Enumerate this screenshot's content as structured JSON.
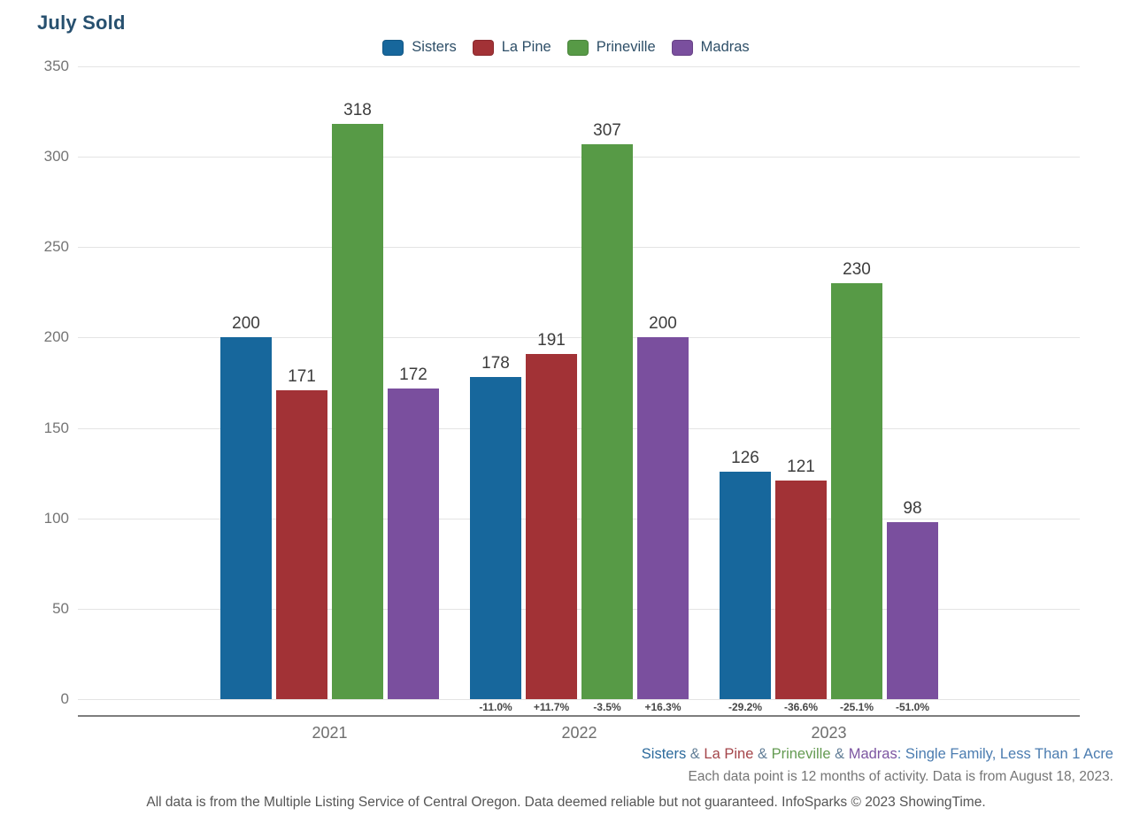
{
  "title": "July Sold",
  "chart_data": {
    "type": "bar",
    "categories": [
      "2021",
      "2022",
      "2023"
    ],
    "series": [
      {
        "name": "Sisters",
        "color": "#17679c",
        "values": [
          200,
          178,
          126
        ],
        "pct_change": [
          "",
          "-11.0%",
          "-29.2%"
        ]
      },
      {
        "name": "La Pine",
        "color": "#a23236",
        "values": [
          171,
          191,
          121
        ],
        "pct_change": [
          "",
          "+11.7%",
          "-36.6%"
        ]
      },
      {
        "name": "Prineville",
        "color": "#579a46",
        "values": [
          318,
          307,
          230
        ],
        "pct_change": [
          "",
          "-3.5%",
          "-25.1%"
        ]
      },
      {
        "name": "Madras",
        "color": "#7a4f9e",
        "values": [
          172,
          200,
          98
        ],
        "pct_change": [
          "",
          "+16.3%",
          "-51.0%"
        ]
      }
    ],
    "title": "July Sold",
    "xlabel": "",
    "ylabel": "",
    "ylim": [
      0,
      350
    ],
    "ytick_step": 50,
    "yticks": [
      0,
      50,
      100,
      150,
      200,
      250,
      300,
      350
    ],
    "grid": true,
    "legend_position": "top"
  },
  "footnotes": {
    "series_line_segments": [
      {
        "text": "Sisters",
        "color": "#2c6a9c"
      },
      {
        "text": " & ",
        "color": "#627e97"
      },
      {
        "text": "La Pine",
        "color": "#a4454a"
      },
      {
        "text": " & ",
        "color": "#627e97"
      },
      {
        "text": "Prineville",
        "color": "#649b52"
      },
      {
        "text": " & ",
        "color": "#627e97"
      },
      {
        "text": "Madras",
        "color": "#7c55a1"
      },
      {
        "text": ": Single Family, Less Than 1 Acre",
        "color": "#4b7cb0"
      }
    ],
    "activity_line": "Each data point is 12 months of activity. Data is from August 18, 2023.",
    "disclaimer_line": "All data is from the Multiple Listing Service of Central Oregon. Data deemed reliable but not guaranteed. InfoSparks © 2023 ShowingTime."
  },
  "colors": {
    "title_text": "#27506f",
    "legend_text": "#2e4f68",
    "tick_text": "#757575",
    "value_label_text": "#3d3d3d",
    "pct_label_text": "#474747",
    "year_label_text": "#6e6e6e",
    "gridline": "#e4e4e4",
    "axis_line": "#7d7d7d",
    "activity_text": "#757575",
    "disclaimer_text": "#555555"
  }
}
